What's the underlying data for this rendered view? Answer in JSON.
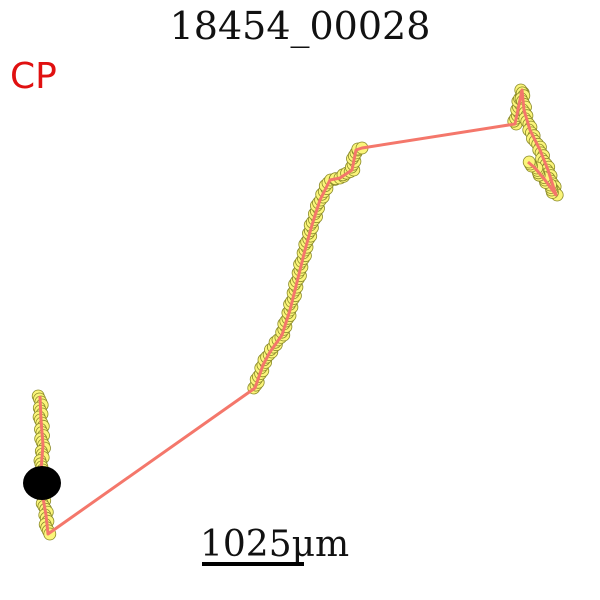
{
  "title": "18454_00028",
  "corner_label": "CP",
  "scale_bar_label": "1025μm",
  "colors": {
    "track_line": "#f4776b",
    "point_fill": "#fbf57a",
    "point_stroke": "#8a8a2a",
    "start_marker": "#000000",
    "corner_label": "#e01010"
  }
}
